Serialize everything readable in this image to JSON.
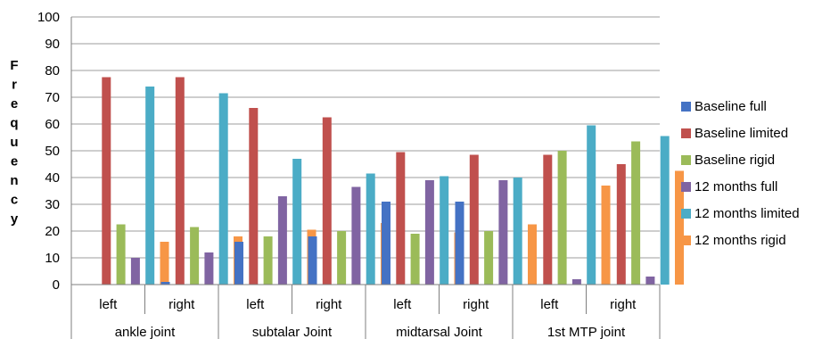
{
  "chart_data": {
    "type": "bar",
    "ylabel": "Frequency",
    "ylim": [
      0,
      100
    ],
    "yticks": [
      0,
      10,
      20,
      30,
      40,
      50,
      60,
      70,
      80,
      90,
      100
    ],
    "grid": true,
    "legend_position": "right",
    "groups": [
      {
        "label": "ankle joint",
        "categories": [
          "left",
          "right"
        ]
      },
      {
        "label": "subtalar Joint",
        "categories": [
          "left",
          "right"
        ]
      },
      {
        "label": "midtarsal Joint",
        "categories": [
          "left",
          "right"
        ]
      },
      {
        "label": "1st MTP joint",
        "categories": [
          "left",
          "right"
        ]
      }
    ],
    "series": [
      {
        "name": "Baseline full",
        "color": "#4472C4",
        "values": [
          0,
          1,
          16,
          18,
          31,
          31,
          0,
          0
        ]
      },
      {
        "name": "Baseline limited",
        "color": "#C0504D",
        "values": [
          77.5,
          77.5,
          66,
          62.5,
          49.5,
          48.5,
          48.5,
          45
        ]
      },
      {
        "name": "Baseline rigid",
        "color": "#9BBB59",
        "values": [
          22.5,
          21.5,
          18,
          20,
          19,
          20,
          50,
          53.5
        ]
      },
      {
        "name": "12 months full",
        "color": "#8064A2",
        "values": [
          10,
          12,
          33,
          36.5,
          39,
          39,
          2,
          3
        ]
      },
      {
        "name": "12 months limited",
        "color": "#4BACC6",
        "values": [
          74,
          71.5,
          47,
          41.5,
          40.5,
          40,
          59.5,
          55.5
        ]
      },
      {
        "name": "12 months rigid",
        "color": "#F79646",
        "values": [
          16,
          18,
          20.5,
          23,
          19.5,
          22.5,
          37,
          42.5
        ]
      }
    ]
  }
}
